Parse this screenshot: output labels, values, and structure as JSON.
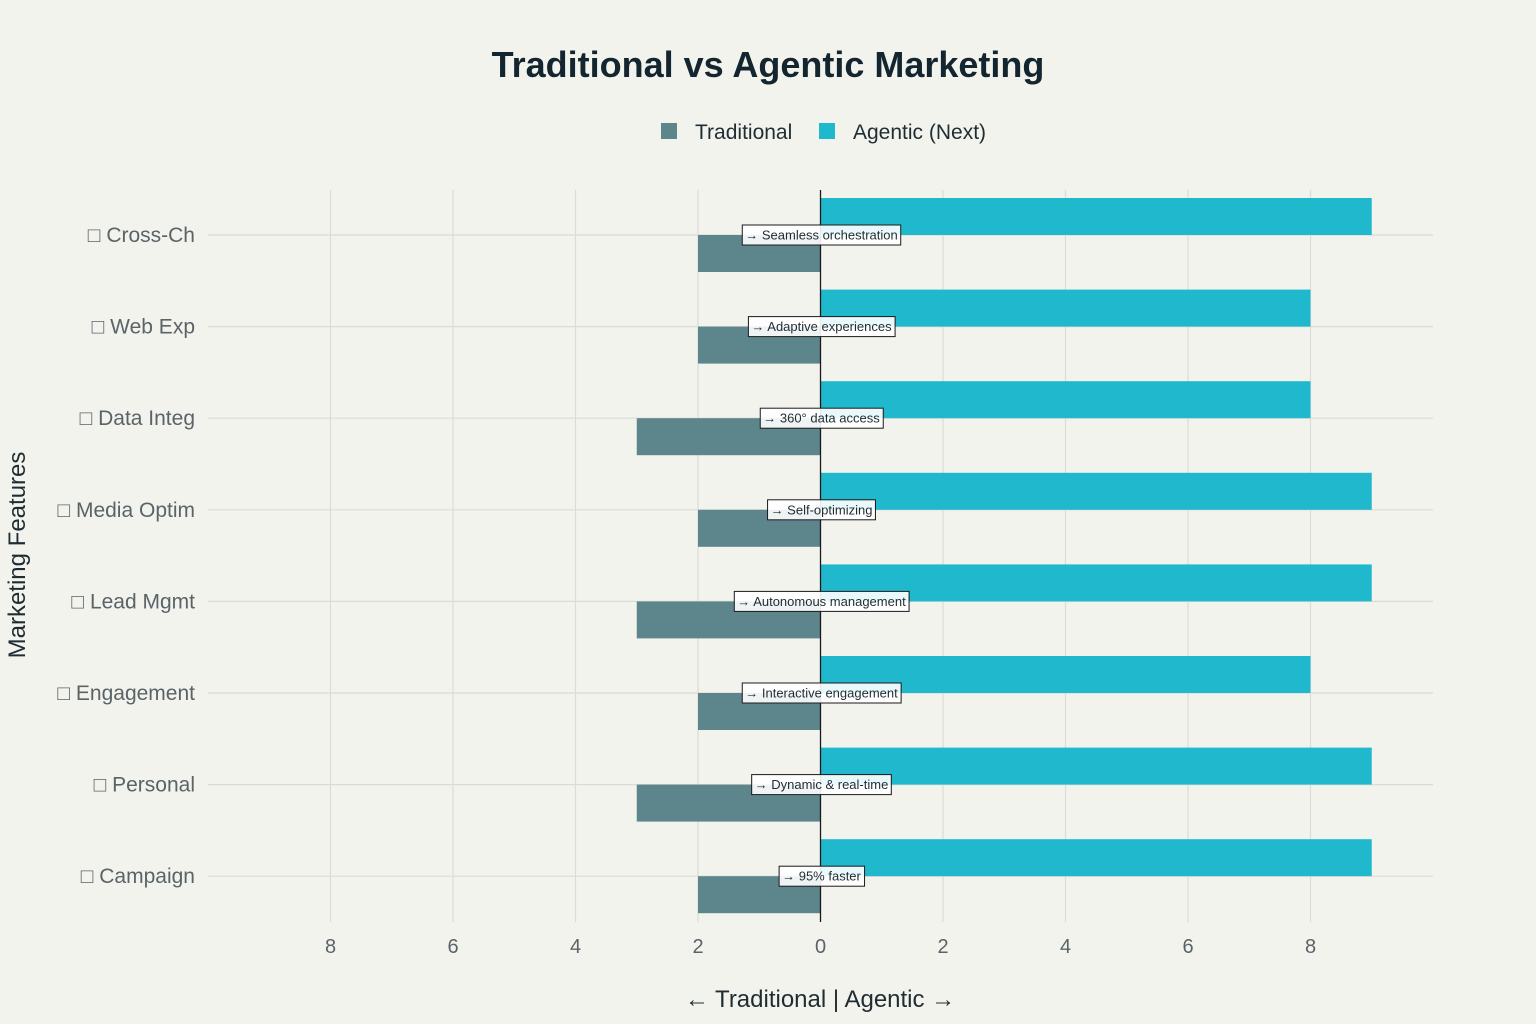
{
  "chart_data": {
    "type": "bar",
    "orientation": "horizontal",
    "title": "Traditional vs Agentic Marketing",
    "xlabel": "← Traditional | Agentic →",
    "ylabel": "Marketing Features",
    "xlim": [
      -10,
      10
    ],
    "x_ticks": [
      -8,
      -6,
      -4,
      -2,
      0,
      2,
      4,
      6,
      8
    ],
    "x_tick_labels": [
      "8",
      "6",
      "4",
      "2",
      "0",
      "2",
      "4",
      "6",
      "8"
    ],
    "legend_position": "top-center",
    "grid": true,
    "categories": [
      "□ Cross-Ch",
      "□ Web Exp",
      "□ Data Integ",
      "□ Media Optim",
      "□ Lead Mgmt",
      "□ Engagement",
      "□ Personal",
      "□ Campaign"
    ],
    "series": [
      {
        "name": "Traditional",
        "color": "#5d858c",
        "values": [
          -2,
          -2,
          -3,
          -2,
          -3,
          -2,
          -3,
          -2
        ]
      },
      {
        "name": "Agentic (Next)",
        "color": "#1fb8cd",
        "values": [
          9,
          8,
          8,
          9,
          9,
          8,
          9,
          9
        ]
      }
    ],
    "annotations": [
      "→ Seamless orchestration",
      "→ Adaptive experiences",
      "→ 360° data access",
      "→ Self-optimizing",
      "→ Autonomous management",
      "→ Interactive engagement",
      "→ Dynamic & real-time",
      "→ 95% faster"
    ]
  }
}
